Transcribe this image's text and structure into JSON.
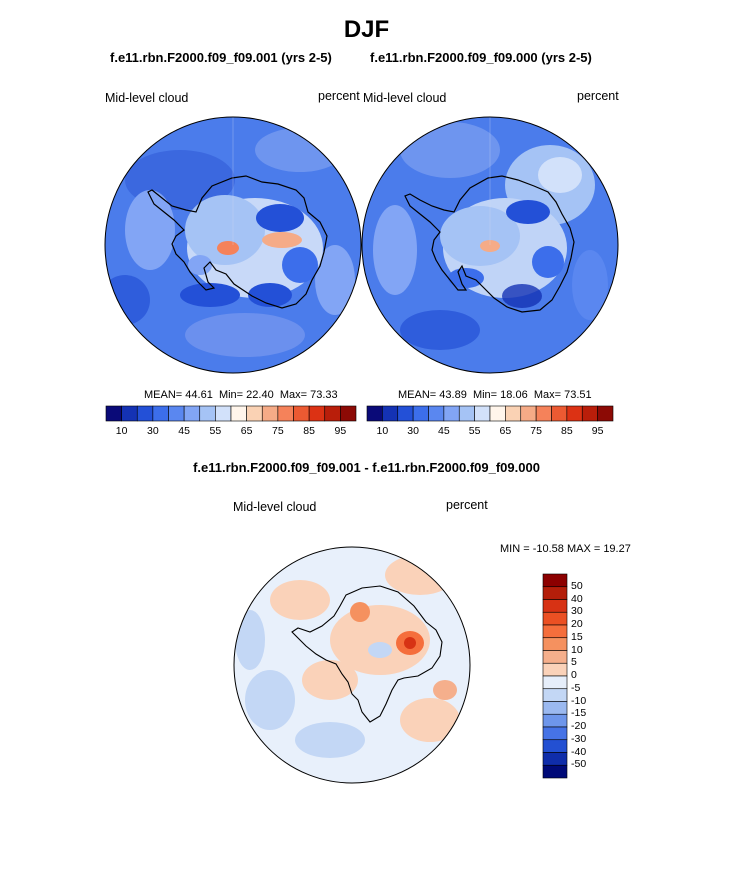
{
  "title": "DJF",
  "panels": [
    {
      "title": "f.e11.rbn.F2000.f09_f09.001 (yrs 2-5)",
      "left_label": "Mid-level cloud",
      "right_label": "percent",
      "stats": {
        "mean_label": "MEAN=",
        "mean": "44.61",
        "min_label": "Min=",
        "min": "22.40",
        "max_label": "Max=",
        "max": "73.33"
      }
    },
    {
      "title": "f.e11.rbn.F2000.f09_f09.000 (yrs 2-5)",
      "left_label": "Mid-level cloud",
      "right_label": "percent",
      "stats": {
        "mean_label": "MEAN=",
        "mean": "43.89",
        "min_label": "Min=",
        "min": "18.06",
        "max_label": "Max=",
        "max": "73.51"
      }
    }
  ],
  "main_colorbar": {
    "tick_labels": [
      "10",
      "30",
      "45",
      "55",
      "65",
      "75",
      "85",
      "95"
    ],
    "colors": [
      "#0a0a78",
      "#1432b4",
      "#2350d7",
      "#3c6eeb",
      "#5a87f0",
      "#82a5f5",
      "#a5c3f5",
      "#d2e1fa",
      "#fff5eb",
      "#fad2b4",
      "#f5ab87",
      "#f5825a",
      "#ec5a32",
      "#dc3214",
      "#b91e0a",
      "#8c0a05"
    ]
  },
  "difference": {
    "title": "f.e11.rbn.F2000.f09_f09.001 - f.e11.rbn.F2000.f09_f09.000",
    "left_label": "Mid-level cloud",
    "right_label": "percent",
    "minmax_text": "MIN = -10.58 MAX =  19.27",
    "colorbar": {
      "tick_labels": [
        "50",
        "40",
        "30",
        "20",
        "15",
        "10",
        "5",
        "0",
        "-5",
        "-10",
        "-15",
        "-20",
        "-30",
        "-40",
        "-50"
      ],
      "colors": [
        "#8c0000",
        "#b41e0a",
        "#d73214",
        "#eb5023",
        "#f56e3c",
        "#f5915f",
        "#f5af8c",
        "#fad2b9",
        "#e6eefa",
        "#c3d7f5",
        "#9bb9f0",
        "#6e96eb",
        "#4673e6",
        "#2350d2",
        "#0f2daa",
        "#000a78"
      ]
    }
  }
}
